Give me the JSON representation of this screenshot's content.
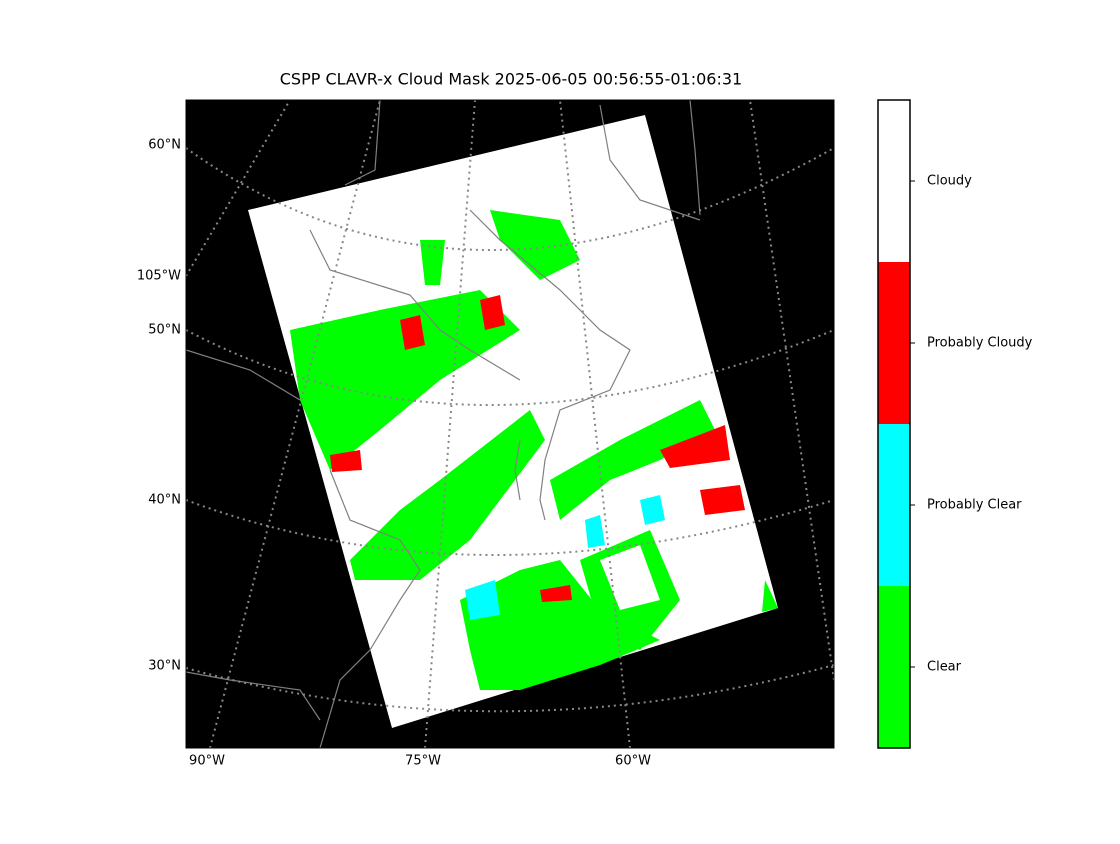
{
  "title": "CSPP CLAVR-x Cloud Mask 2025-06-05 00:56:55-01:06:31",
  "map": {
    "lat_labels": [
      "60°N",
      "105°W",
      "50°N",
      "40°N",
      "30°N"
    ],
    "lon_labels": [
      "90°W",
      "75°W",
      "60°W"
    ]
  },
  "colorbar": {
    "classes": [
      {
        "name": "Clear",
        "color": "#00ff00"
      },
      {
        "name": "Probably Clear",
        "color": "#00ffff"
      },
      {
        "name": "Probably Cloudy",
        "color": "#ff0000"
      },
      {
        "name": "Cloudy",
        "color": "#ffffff"
      }
    ]
  }
}
